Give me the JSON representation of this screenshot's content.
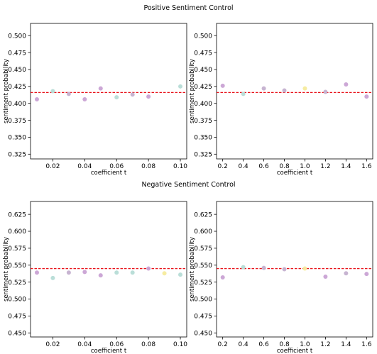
{
  "sections": {
    "top_title": "Positive Sentiment Control",
    "bottom_title": "Negative Sentiment Control"
  },
  "chart_data": [
    {
      "type": "scatter",
      "section": "Positive Sentiment Control",
      "xlabel": "coefficient t",
      "ylabel": "sentiment probability",
      "xlim": [
        0.006,
        0.104
      ],
      "ylim": [
        0.318,
        0.518
      ],
      "xticks": [
        "0.02",
        "0.04",
        "0.06",
        "0.08",
        "0.10"
      ],
      "xtick_values": [
        0.02,
        0.04,
        0.06,
        0.08,
        0.1
      ],
      "yticks": [
        "0.325",
        "0.350",
        "0.375",
        "0.400",
        "0.425",
        "0.450",
        "0.475",
        "0.500"
      ],
      "ytick_values": [
        0.325,
        0.35,
        0.375,
        0.4,
        0.425,
        0.45,
        0.475,
        0.5
      ],
      "baseline": 0.416,
      "points": [
        {
          "x": 0.01,
          "y": 0.406,
          "color": "#c9a2d4"
        },
        {
          "x": 0.02,
          "y": 0.418,
          "color": "#b6dcd6"
        },
        {
          "x": 0.03,
          "y": 0.414,
          "color": "#c4b0cf"
        },
        {
          "x": 0.04,
          "y": 0.406,
          "color": "#c9a2d4"
        },
        {
          "x": 0.05,
          "y": 0.422,
          "color": "#c9a2d4"
        },
        {
          "x": 0.06,
          "y": 0.409,
          "color": "#b6dcd6"
        },
        {
          "x": 0.07,
          "y": 0.413,
          "color": "#c4b0cf"
        },
        {
          "x": 0.08,
          "y": 0.41,
          "color": "#c9a2d4"
        },
        {
          "x": 0.1,
          "y": 0.425,
          "color": "#b6dcd6"
        }
      ]
    },
    {
      "type": "scatter",
      "section": "Positive Sentiment Control",
      "xlabel": "coefficient t",
      "ylabel": "sentiment probability",
      "xlim": [
        0.14,
        1.66
      ],
      "ylim": [
        0.318,
        0.518
      ],
      "xticks": [
        "0.2",
        "0.4",
        "0.6",
        "0.8",
        "1.0",
        "1.2",
        "1.4",
        "1.6"
      ],
      "xtick_values": [
        0.2,
        0.4,
        0.6,
        0.8,
        1.0,
        1.2,
        1.4,
        1.6
      ],
      "yticks": [
        "0.325",
        "0.350",
        "0.375",
        "0.400",
        "0.425",
        "0.450",
        "0.475",
        "0.500"
      ],
      "ytick_values": [
        0.325,
        0.35,
        0.375,
        0.4,
        0.425,
        0.45,
        0.475,
        0.5
      ],
      "baseline": 0.416,
      "points": [
        {
          "x": 0.2,
          "y": 0.426,
          "color": "#c9a2d4"
        },
        {
          "x": 0.4,
          "y": 0.414,
          "color": "#b6dcd6"
        },
        {
          "x": 0.6,
          "y": 0.422,
          "color": "#c4b0cf"
        },
        {
          "x": 0.8,
          "y": 0.419,
          "color": "#c4b0cf"
        },
        {
          "x": 1.0,
          "y": 0.422,
          "color": "#f6eb9c"
        },
        {
          "x": 1.2,
          "y": 0.417,
          "color": "#c4b0cf"
        },
        {
          "x": 1.4,
          "y": 0.428,
          "color": "#c9a2d4"
        },
        {
          "x": 1.6,
          "y": 0.41,
          "color": "#c9a2d4"
        }
      ]
    },
    {
      "type": "scatter",
      "section": "Negative Sentiment Control",
      "xlabel": "coefficient t",
      "ylabel": "sentiment probability",
      "xlim": [
        0.006,
        0.104
      ],
      "ylim": [
        0.444,
        0.644
      ],
      "xticks": [
        "0.02",
        "0.04",
        "0.06",
        "0.08",
        "0.10"
      ],
      "xtick_values": [
        0.02,
        0.04,
        0.06,
        0.08,
        0.1
      ],
      "yticks": [
        "0.450",
        "0.475",
        "0.500",
        "0.525",
        "0.550",
        "0.575",
        "0.600",
        "0.625"
      ],
      "ytick_values": [
        0.45,
        0.475,
        0.5,
        0.525,
        0.55,
        0.575,
        0.6,
        0.625
      ],
      "baseline": 0.545,
      "points": [
        {
          "x": 0.01,
          "y": 0.539,
          "color": "#c9a2d4"
        },
        {
          "x": 0.02,
          "y": 0.531,
          "color": "#b6dcd6"
        },
        {
          "x": 0.03,
          "y": 0.539,
          "color": "#c4b0cf"
        },
        {
          "x": 0.04,
          "y": 0.54,
          "color": "#c9a2d4"
        },
        {
          "x": 0.05,
          "y": 0.535,
          "color": "#c9a2d4"
        },
        {
          "x": 0.06,
          "y": 0.539,
          "color": "#b6dcd6"
        },
        {
          "x": 0.07,
          "y": 0.539,
          "color": "#b6dcd6"
        },
        {
          "x": 0.08,
          "y": 0.545,
          "color": "#c9a2d4"
        },
        {
          "x": 0.09,
          "y": 0.538,
          "color": "#f6eb9c"
        },
        {
          "x": 0.1,
          "y": 0.536,
          "color": "#b6dcd6"
        }
      ]
    },
    {
      "type": "scatter",
      "section": "Negative Sentiment Control",
      "xlabel": "coefficient t",
      "ylabel": "sentiment probability",
      "xlim": [
        0.14,
        1.66
      ],
      "ylim": [
        0.444,
        0.644
      ],
      "xticks": [
        "0.2",
        "0.4",
        "0.6",
        "0.8",
        "1.0",
        "1.2",
        "1.4",
        "1.6"
      ],
      "xtick_values": [
        0.2,
        0.4,
        0.6,
        0.8,
        1.0,
        1.2,
        1.4,
        1.6
      ],
      "yticks": [
        "0.450",
        "0.475",
        "0.500",
        "0.525",
        "0.550",
        "0.575",
        "0.600",
        "0.625"
      ],
      "ytick_values": [
        0.45,
        0.475,
        0.5,
        0.525,
        0.55,
        0.575,
        0.6,
        0.625
      ],
      "baseline": 0.545,
      "points": [
        {
          "x": 0.2,
          "y": 0.532,
          "color": "#c9a2d4"
        },
        {
          "x": 0.4,
          "y": 0.547,
          "color": "#b6dcd6"
        },
        {
          "x": 0.6,
          "y": 0.546,
          "color": "#c4b0cf"
        },
        {
          "x": 0.8,
          "y": 0.544,
          "color": "#c4b0cf"
        },
        {
          "x": 1.0,
          "y": 0.545,
          "color": "#f6eb9c"
        },
        {
          "x": 1.2,
          "y": 0.533,
          "color": "#c9a2d4"
        },
        {
          "x": 1.4,
          "y": 0.538,
          "color": "#c4b0cf"
        },
        {
          "x": 1.6,
          "y": 0.537,
          "color": "#c9a2d4"
        }
      ]
    }
  ],
  "colors": {
    "baseline": "#e8141c",
    "axes": "#000000"
  }
}
